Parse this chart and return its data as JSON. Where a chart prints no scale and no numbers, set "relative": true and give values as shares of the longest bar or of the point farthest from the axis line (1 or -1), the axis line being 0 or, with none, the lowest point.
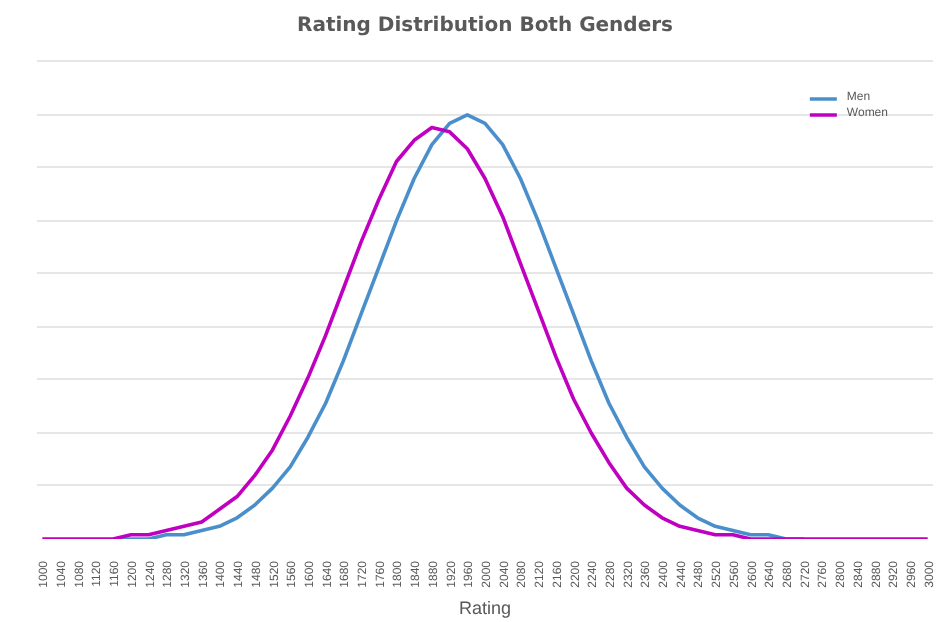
{
  "chart_data": {
    "type": "line",
    "title": "Rating Distribution Both Genders",
    "xlabel": "Rating",
    "categories": [
      "1000",
      "1040",
      "1080",
      "1120",
      "1160",
      "1200",
      "1240",
      "1280",
      "1320",
      "1360",
      "1400",
      "1440",
      "1480",
      "1520",
      "1560",
      "1600",
      "1640",
      "1680",
      "1720",
      "1760",
      "1800",
      "1840",
      "1880",
      "1920",
      "1960",
      "2000",
      "2040",
      "2080",
      "2120",
      "2160",
      "2200",
      "2240",
      "2280",
      "2320",
      "2360",
      "2400",
      "2440",
      "2480",
      "2520",
      "2560",
      "2600",
      "2640",
      "2680",
      "2720",
      "2760",
      "2800",
      "2840",
      "2880",
      "2920",
      "2960",
      "3000"
    ],
    "relative": true,
    "grid": "y",
    "legend": "top right",
    "marker": "none",
    "line_style": "solid",
    "series": [
      {
        "name": "Men",
        "color": "#4a8fcb",
        "values": [
          null,
          null,
          null,
          null,
          0,
          0,
          0,
          0.01,
          0.01,
          0.02,
          0.03,
          0.05,
          0.08,
          0.12,
          0.17,
          0.24,
          0.32,
          0.42,
          0.53,
          0.64,
          0.75,
          0.85,
          0.93,
          0.98,
          1,
          0.98,
          0.93,
          0.85,
          0.75,
          0.64,
          0.53,
          0.42,
          0.32,
          0.24,
          0.17,
          0.12,
          0.08,
          0.05,
          0.03,
          0.02,
          0.01,
          0.01,
          0,
          0,
          null,
          null,
          null,
          null,
          null,
          null,
          null
        ]
      },
      {
        "name": "Women",
        "color": "#c000c0",
        "values": [
          0,
          0,
          0,
          0,
          0,
          0.01,
          0.01,
          0.02,
          0.03,
          0.04,
          0.07,
          0.1,
          0.15,
          0.21,
          0.29,
          0.38,
          0.48,
          0.59,
          0.7,
          0.8,
          0.89,
          0.94,
          0.97,
          0.96,
          0.92,
          0.85,
          0.76,
          0.65,
          0.54,
          0.43,
          0.33,
          0.25,
          0.18,
          0.12,
          0.08,
          0.05,
          0.03,
          0.02,
          0.01,
          0.01,
          0,
          0,
          0,
          0,
          0,
          0,
          0,
          0,
          0,
          0,
          0
        ]
      }
    ]
  }
}
